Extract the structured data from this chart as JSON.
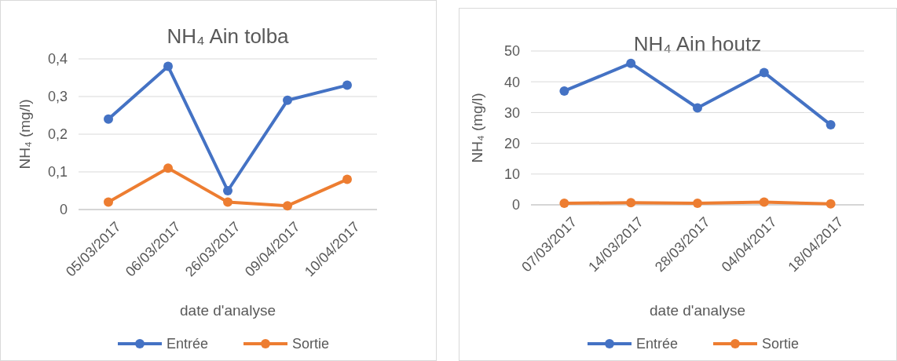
{
  "chart_data": [
    {
      "type": "line",
      "title": "NH₄ Ain tolba",
      "xlabel": "date d'analyse",
      "ylabel": "NH₄ (mg/l)",
      "categories": [
        "05/03/2017",
        "06/03/2017",
        "26/03/2017",
        "09/04/2017",
        "10/04/2017"
      ],
      "series": [
        {
          "name": "Entrée",
          "color": "#4472c4",
          "values": [
            0.24,
            0.38,
            0.05,
            0.29,
            0.33
          ]
        },
        {
          "name": "Sortie",
          "color": "#ed7d31",
          "values": [
            0.02,
            0.11,
            0.02,
            0.01,
            0.08
          ]
        }
      ],
      "ylim": [
        0,
        0.4
      ],
      "yticks": [
        0,
        {
          "value": 0.1,
          "label": "0,1"
        },
        {
          "value": 0.2,
          "label": "0,2"
        },
        {
          "value": 0.3,
          "label": "0,3"
        },
        {
          "value": 0.4,
          "label": "0,4"
        }
      ],
      "grid": "y",
      "legend": "bottom",
      "marker": "circle",
      "line_style": "solid"
    },
    {
      "type": "line",
      "title": "NH₄ Ain houtz",
      "xlabel": "date d'analyse",
      "ylabel": "NH₄ (mg/l)",
      "categories": [
        "07/03/2017",
        "14/03/2017",
        "28/03/2017",
        "04/04/2017",
        "18/04/2017"
      ],
      "series": [
        {
          "name": "Entrée",
          "color": "#4472c4",
          "values": [
            37,
            46,
            31.5,
            43,
            26
          ]
        },
        {
          "name": "Sortie",
          "color": "#ed7d31",
          "values": [
            0.5,
            0.7,
            0.5,
            0.9,
            0.3
          ]
        }
      ],
      "ylim": [
        0,
        50
      ],
      "yticks": [
        0,
        10,
        20,
        30,
        40,
        50
      ],
      "grid": "y",
      "legend": "bottom",
      "marker": "circle",
      "line_style": "solid"
    }
  ]
}
